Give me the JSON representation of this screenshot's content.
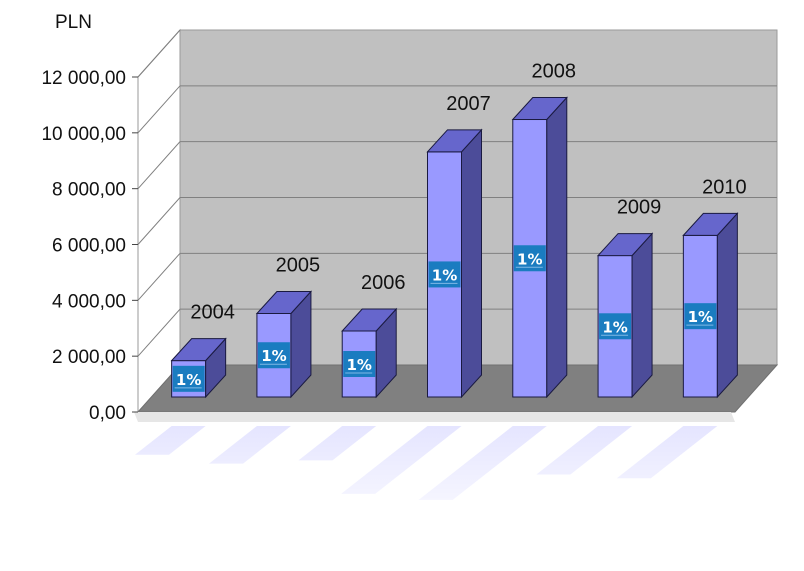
{
  "chart_data": {
    "type": "bar",
    "unit_label": "PLN",
    "categories": [
      "2004",
      "2005",
      "2006",
      "2007",
      "2008",
      "2009",
      "2010"
    ],
    "values": [
      1350,
      3100,
      2450,
      9100,
      10300,
      5250,
      6000
    ],
    "ylim": [
      0,
      12000
    ],
    "yticks": [
      0,
      2000,
      4000,
      6000,
      8000,
      10000,
      12000
    ],
    "ytick_labels": [
      "0,00",
      "2 000,00",
      "4 000,00",
      "6 000,00",
      "8 000,00",
      "10 000,00",
      "12 000,00"
    ],
    "grid": true,
    "style": "3d",
    "badge_text": "1%",
    "colors": {
      "bar_front": "#9999ff",
      "bar_top": "#6666cc",
      "bar_side": "#4c4c99",
      "back_wall": "#c0c0c0",
      "floor": "#808080",
      "badge": "#1a7cc0"
    }
  }
}
